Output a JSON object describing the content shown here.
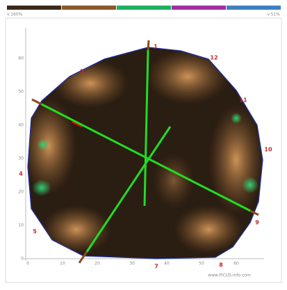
{
  "color_bar": {
    "left_label": "v:160%",
    "right_label": "v:51%"
  },
  "axes": {
    "y_ticks": [
      "0",
      "10",
      "20",
      "30",
      "40",
      "50",
      "60"
    ],
    "x_ticks": [
      "0",
      "10",
      "20",
      "30",
      "40",
      "50",
      "60"
    ]
  },
  "sensors": [
    {
      "label": "1"
    },
    {
      "label": "2"
    },
    {
      "label": "4"
    },
    {
      "label": "5"
    },
    {
      "label": "7"
    },
    {
      "label": "8"
    },
    {
      "label": "9"
    },
    {
      "label": "10"
    },
    {
      "label": "11"
    },
    {
      "label": "12"
    }
  ],
  "footer": "www.PiCUS-info.com"
}
